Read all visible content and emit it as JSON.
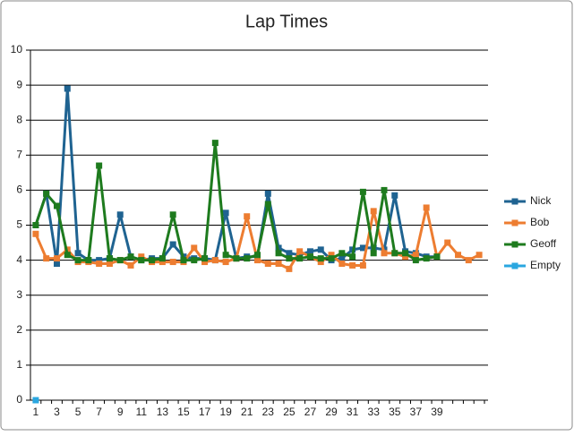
{
  "chart_data": {
    "type": "line",
    "title": "Lap Times",
    "categories": [
      "1",
      null,
      "3",
      null,
      "5",
      null,
      "7",
      null,
      "9",
      null,
      "11",
      null,
      "13",
      null,
      "15",
      null,
      "17",
      null,
      "19",
      null,
      "21",
      null,
      "23",
      null,
      "25",
      null,
      "27",
      null,
      "29",
      null,
      "31",
      null,
      "33",
      null,
      "35",
      null,
      "37",
      null,
      "39",
      null,
      null,
      null,
      null
    ],
    "series": [
      {
        "name": "Nick",
        "color": "#1f6391",
        "values": [
          5.0,
          5.9,
          3.9,
          8.9,
          4.2,
          4.0,
          4.0,
          4.05,
          5.3,
          4.1,
          4.0,
          4.05,
          4.05,
          4.45,
          4.1,
          4.05,
          4.05,
          4.0,
          5.35,
          4.05,
          4.1,
          4.1,
          5.9,
          4.35,
          4.2,
          4.15,
          4.25,
          4.3,
          4.0,
          4.05,
          4.3,
          4.35,
          4.35,
          4.3,
          5.85,
          4.25,
          4.2,
          4.1,
          4.1,
          null,
          null,
          null,
          null
        ]
      },
      {
        "name": "Bob",
        "color": "#ed7d31",
        "values": [
          4.75,
          4.05,
          4.05,
          4.3,
          3.95,
          3.95,
          3.9,
          3.9,
          4.0,
          3.85,
          4.1,
          3.95,
          3.95,
          3.95,
          3.95,
          4.35,
          3.95,
          4.0,
          3.95,
          4.05,
          5.25,
          4.0,
          3.9,
          3.9,
          3.75,
          4.25,
          4.1,
          3.95,
          4.15,
          3.9,
          3.85,
          3.85,
          5.4,
          4.2,
          4.2,
          4.1,
          4.15,
          5.5,
          4.1,
          4.5,
          4.15,
          4.0,
          4.15
        ]
      },
      {
        "name": "Geoff",
        "color": "#1e7b1e",
        "values": [
          5.0,
          5.9,
          5.55,
          4.15,
          4.0,
          4.0,
          6.7,
          4.05,
          4.0,
          4.1,
          4.0,
          4.0,
          4.05,
          5.3,
          4.0,
          4.0,
          4.05,
          7.35,
          4.15,
          4.05,
          4.05,
          4.15,
          5.6,
          4.2,
          4.05,
          4.05,
          4.1,
          4.05,
          4.05,
          4.2,
          4.1,
          5.95,
          4.2,
          6.0,
          4.2,
          4.2,
          4.0,
          4.05,
          4.1,
          null,
          null,
          null,
          null
        ]
      },
      {
        "name": "Empty",
        "color": "#2aa7e0",
        "values": [
          0,
          null,
          null,
          null,
          null,
          null,
          null,
          null,
          null,
          null,
          null,
          null,
          null,
          null,
          null,
          null,
          null,
          null,
          null,
          null,
          null,
          null,
          null,
          null,
          null,
          null,
          null,
          null,
          null,
          null,
          null,
          null,
          null,
          null,
          null,
          null,
          null,
          null,
          null,
          null,
          null,
          null,
          null
        ]
      }
    ],
    "ylim": [
      0,
      10
    ],
    "yticks": [
      0,
      1,
      2,
      3,
      4,
      5,
      6,
      7,
      8,
      9,
      10
    ],
    "grid": true,
    "legend": "right"
  }
}
